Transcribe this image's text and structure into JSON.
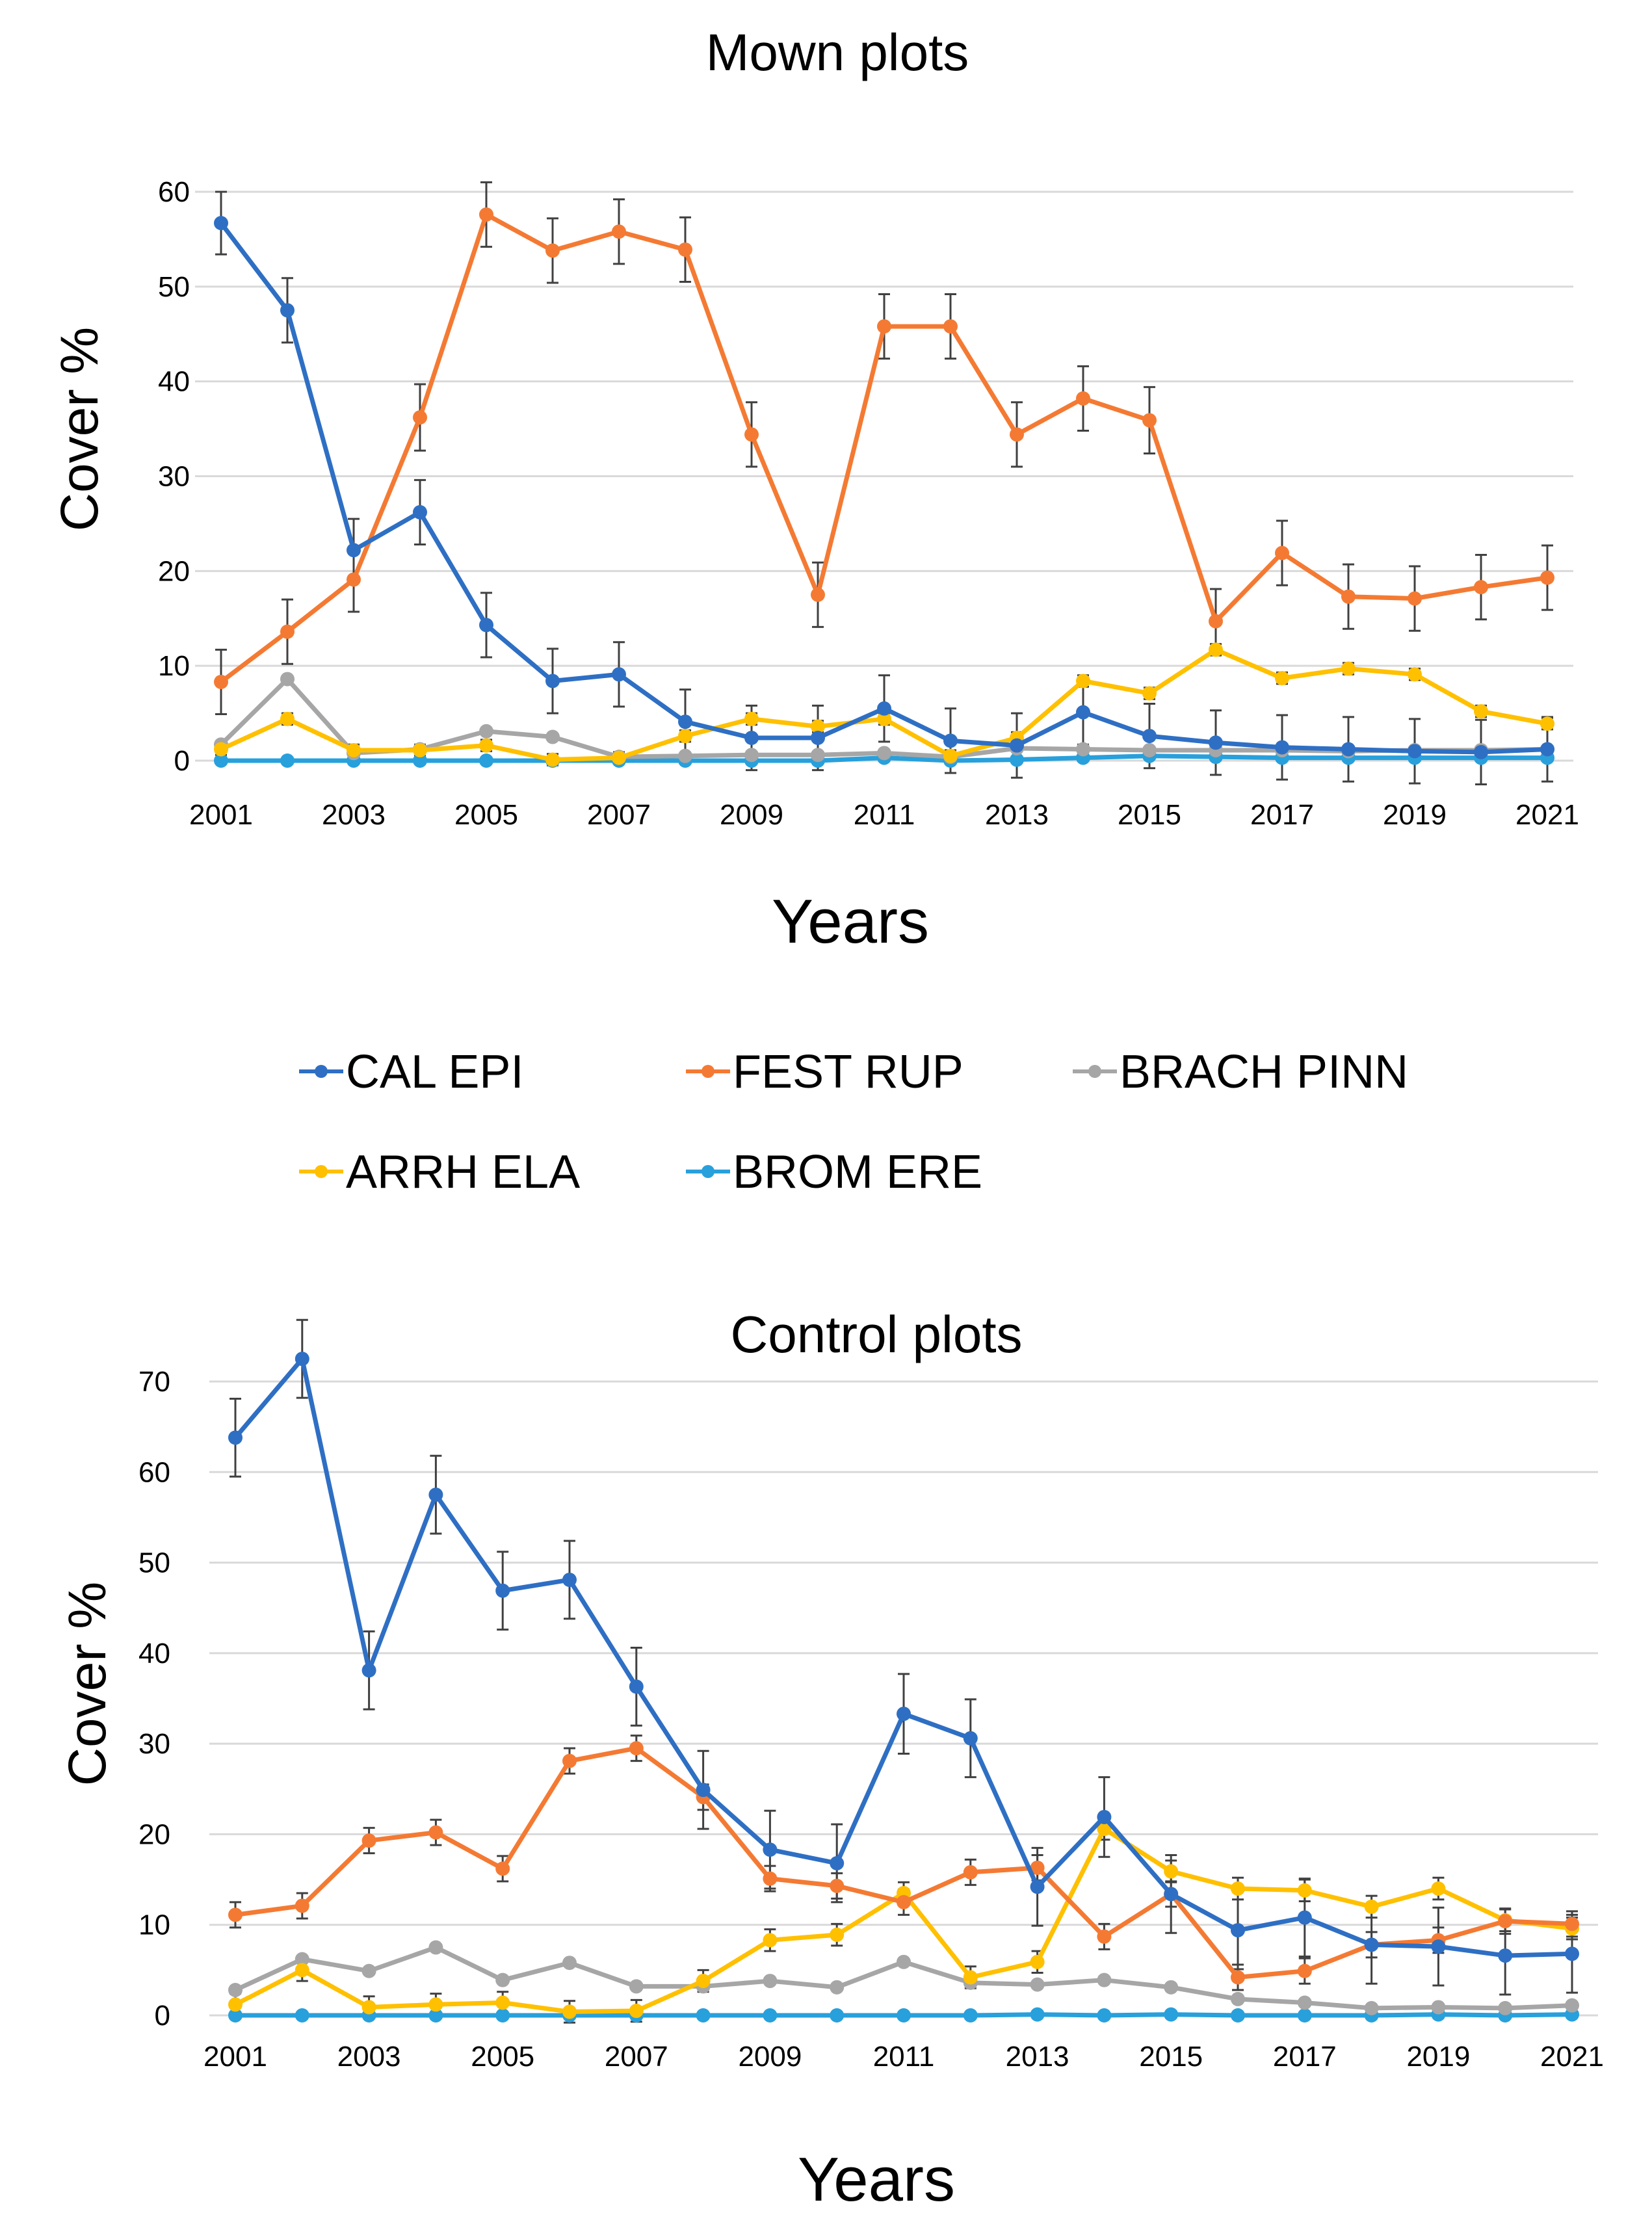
{
  "colors": {
    "CAL EPI": "#2e6fc4",
    "FEST RUP": "#f47a33",
    "BRACH PINN": "#a6a6a6",
    "ARRH ELA": "#ffc000",
    "BROM ERE": "#28a0dc",
    "gridline": "#d9d9d9",
    "errorbar": "#404040"
  },
  "legend": {
    "items": [
      "CAL EPI",
      "FEST RUP",
      "BRACH PINN",
      "ARRH ELA",
      "BROM ERE"
    ]
  },
  "chart_data": [
    {
      "type": "line",
      "title": "Mown plots",
      "xlabel": "Years",
      "ylabel": "Cover %",
      "ylim": [
        0,
        60
      ],
      "yticks": [
        0,
        10,
        20,
        30,
        40,
        50,
        60
      ],
      "xtick_labels": [
        "2001",
        "2003",
        "2005",
        "2007",
        "2009",
        "2011",
        "2013",
        "2015",
        "2017",
        "2019",
        "2021"
      ],
      "x": [
        2001,
        2002,
        2003,
        2004,
        2005,
        2006,
        2007,
        2008,
        2009,
        2010,
        2011,
        2012,
        2013,
        2014,
        2015,
        2016,
        2017,
        2018,
        2019,
        2020,
        2021
      ],
      "grid": true,
      "series": [
        {
          "name": "CAL EPI",
          "values": [
            56.7,
            47.5,
            22.2,
            26.2,
            14.3,
            8.4,
            9.1,
            4.1,
            2.4,
            2.4,
            5.5,
            2.1,
            1.6,
            5.1,
            2.6,
            1.9,
            1.4,
            1.2,
            1.0,
            0.9,
            1.2
          ],
          "errors": [
            3.3,
            3.4,
            3.3,
            3.4,
            3.4,
            3.4,
            3.4,
            3.4,
            3.4,
            3.4,
            3.5,
            3.4,
            3.4,
            3.4,
            3.4,
            3.4,
            3.4,
            3.4,
            3.4,
            3.4,
            3.4
          ]
        },
        {
          "name": "FEST RUP",
          "values": [
            8.3,
            13.6,
            19.1,
            36.2,
            57.6,
            53.8,
            55.8,
            53.9,
            34.4,
            17.5,
            45.8,
            45.8,
            34.4,
            38.2,
            35.9,
            14.7,
            21.9,
            17.3,
            17.1,
            18.3,
            19.3
          ],
          "errors": [
            3.4,
            3.4,
            3.4,
            3.5,
            3.4,
            3.4,
            3.4,
            3.4,
            3.4,
            3.4,
            3.4,
            3.4,
            3.4,
            3.4,
            3.5,
            3.4,
            3.4,
            3.4,
            3.4,
            3.4,
            3.4
          ]
        },
        {
          "name": "BRACH PINN",
          "values": [
            1.7,
            8.6,
            0.8,
            1.2,
            3.1,
            2.5,
            0.4,
            0.5,
            0.6,
            0.6,
            0.8,
            0.4,
            1.3,
            1.2,
            1.1,
            1.1,
            1.1,
            1.0,
            1.1,
            1.1,
            1.2
          ],
          "errors": [
            0,
            0,
            0,
            0,
            0,
            0,
            0,
            0,
            0,
            0,
            0,
            0,
            0,
            0,
            0,
            0,
            0,
            0,
            0,
            0,
            0
          ]
        },
        {
          "name": "ARRH ELA",
          "values": [
            1.2,
            4.4,
            1.1,
            1.1,
            1.6,
            0.1,
            0.3,
            2.6,
            4.4,
            3.6,
            4.4,
            0.5,
            2.4,
            8.4,
            7.1,
            11.7,
            8.7,
            9.7,
            9.1,
            5.2,
            3.9
          ],
          "errors": [
            0.6,
            0.6,
            0.6,
            0.6,
            0.6,
            0.6,
            0.6,
            0.6,
            0.6,
            0.6,
            0.6,
            0.6,
            0.6,
            0.6,
            0.6,
            0.6,
            0.6,
            0.6,
            0.6,
            0.6,
            0.6
          ]
        },
        {
          "name": "BROM ERE",
          "values": [
            0,
            0,
            0,
            0,
            0,
            0,
            0,
            0,
            0,
            0,
            0.3,
            0,
            0.1,
            0.3,
            0.5,
            0.4,
            0.3,
            0.3,
            0.3,
            0.3,
            0.3
          ],
          "errors": [
            0,
            0,
            0,
            0,
            0,
            0,
            0,
            0,
            0,
            0,
            0,
            0,
            0,
            0,
            0,
            0,
            0,
            0,
            0,
            0,
            0
          ]
        }
      ]
    },
    {
      "type": "line",
      "title": "Control plots",
      "xlabel": "Years",
      "ylabel": "Cover %",
      "ylim": [
        0,
        70
      ],
      "yticks": [
        0,
        10,
        20,
        30,
        40,
        50,
        60,
        70
      ],
      "xtick_labels": [
        "2001",
        "2003",
        "2005",
        "2007",
        "2009",
        "2011",
        "2013",
        "2015",
        "2017",
        "2019",
        "2021"
      ],
      "x": [
        2001,
        2002,
        2003,
        2004,
        2005,
        2006,
        2007,
        2008,
        2009,
        2010,
        2011,
        2012,
        2013,
        2014,
        2015,
        2016,
        2017,
        2018,
        2019,
        2020,
        2021
      ],
      "grid": true,
      "series": [
        {
          "name": "CAL EPI",
          "values": [
            63.8,
            72.5,
            38.1,
            57.5,
            46.9,
            48.1,
            36.3,
            24.9,
            18.3,
            16.8,
            33.3,
            30.6,
            14.2,
            21.9,
            13.4,
            9.4,
            10.8,
            7.8,
            7.6,
            6.6,
            6.8
          ],
          "errors": [
            4.3,
            4.3,
            4.3,
            4.3,
            4.3,
            4.3,
            4.3,
            4.3,
            4.3,
            4.3,
            4.4,
            4.3,
            4.3,
            4.4,
            4.3,
            4.3,
            4.3,
            4.3,
            4.3,
            4.3,
            4.3
          ]
        },
        {
          "name": "FEST RUP",
          "values": [
            11.1,
            12.1,
            19.3,
            20.2,
            16.2,
            28.1,
            29.5,
            24.1,
            15.1,
            14.3,
            12.5,
            15.8,
            16.3,
            8.7,
            13.4,
            4.2,
            4.9,
            7.8,
            8.3,
            10.4,
            10.1
          ],
          "errors": [
            1.4,
            1.4,
            1.4,
            1.4,
            1.4,
            1.4,
            1.4,
            1.4,
            1.4,
            1.4,
            1.4,
            1.4,
            1.4,
            1.4,
            1.4,
            1.4,
            1.4,
            1.4,
            1.4,
            1.4,
            1.4
          ]
        },
        {
          "name": "BRACH PINN",
          "values": [
            2.8,
            6.2,
            4.9,
            7.5,
            3.9,
            5.8,
            3.2,
            3.2,
            3.8,
            3.1,
            5.9,
            3.6,
            3.4,
            3.9,
            3.1,
            1.8,
            1.4,
            0.8,
            0.9,
            0.8,
            1.1
          ],
          "errors": [
            0,
            0,
            0,
            0,
            0,
            0,
            0,
            0,
            0,
            0,
            0,
            0,
            0,
            0,
            0,
            0,
            0,
            0,
            0,
            0,
            0
          ]
        },
        {
          "name": "ARRH ELA",
          "values": [
            1.2,
            5.0,
            0.9,
            1.2,
            1.4,
            0.4,
            0.5,
            3.8,
            8.3,
            8.9,
            13.5,
            4.2,
            5.9,
            20.6,
            15.9,
            14.0,
            13.8,
            12.0,
            14.0,
            10.5,
            9.6
          ],
          "errors": [
            1.2,
            1.2,
            1.2,
            1.2,
            1.2,
            1.2,
            1.2,
            1.2,
            1.2,
            1.2,
            1.2,
            1.2,
            1.2,
            1.2,
            1.2,
            1.2,
            1.2,
            1.2,
            1.2,
            1.2,
            1.2
          ]
        },
        {
          "name": "BROM ERE",
          "values": [
            0,
            0,
            0,
            0,
            0,
            0,
            0,
            0,
            0,
            0,
            0,
            0,
            0.1,
            0,
            0.1,
            0,
            0,
            0,
            0.1,
            0,
            0.1
          ],
          "errors": [
            0,
            0,
            0,
            0,
            0,
            0,
            0,
            0,
            0,
            0,
            0,
            0,
            0,
            0,
            0,
            0,
            0,
            0,
            0,
            0,
            0
          ]
        }
      ]
    }
  ]
}
